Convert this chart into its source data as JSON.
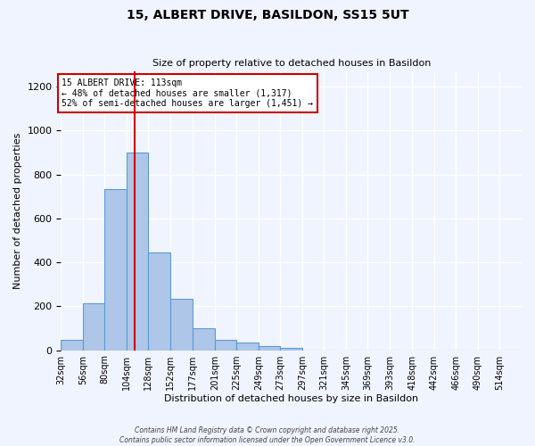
{
  "title": "15, ALBERT DRIVE, BASILDON, SS15 5UT",
  "subtitle": "Size of property relative to detached houses in Basildon",
  "xlabel": "Distribution of detached houses by size in Basildon",
  "ylabel": "Number of detached properties",
  "bar_color": "#aec6e8",
  "bar_edge_color": "#5b9bd5",
  "background_color": "#f0f4ff",
  "grid_color": "#ffffff",
  "bin_labels": [
    "32sqm",
    "56sqm",
    "80sqm",
    "104sqm",
    "128sqm",
    "152sqm",
    "177sqm",
    "201sqm",
    "225sqm",
    "249sqm",
    "273sqm",
    "297sqm",
    "321sqm",
    "345sqm",
    "369sqm",
    "393sqm",
    "418sqm",
    "442sqm",
    "466sqm",
    "490sqm",
    "514sqm"
  ],
  "bar_values": [
    47,
    215,
    735,
    900,
    447,
    235,
    100,
    47,
    35,
    17,
    10,
    0,
    0,
    0,
    0,
    0,
    0,
    0,
    0,
    0,
    0
  ],
  "vline_x": 113,
  "vline_color": "#cc0000",
  "annotation_title": "15 ALBERT DRIVE: 113sqm",
  "annotation_line1": "← 48% of detached houses are smaller (1,317)",
  "annotation_line2": "52% of semi-detached houses are larger (1,451) →",
  "annotation_box_color": "#ffffff",
  "annotation_box_edge": "#cc0000",
  "ylim": [
    0,
    1270
  ],
  "yticks": [
    0,
    200,
    400,
    600,
    800,
    1000,
    1200
  ],
  "footnote1": "Contains HM Land Registry data © Crown copyright and database right 2025.",
  "footnote2": "Contains public sector information licensed under the Open Government Licence v3.0.",
  "bin_edges": [
    32,
    56,
    80,
    104,
    128,
    152,
    177,
    201,
    225,
    249,
    273,
    297,
    321,
    345,
    369,
    393,
    418,
    442,
    466,
    490,
    514
  ],
  "bin_width": 24
}
